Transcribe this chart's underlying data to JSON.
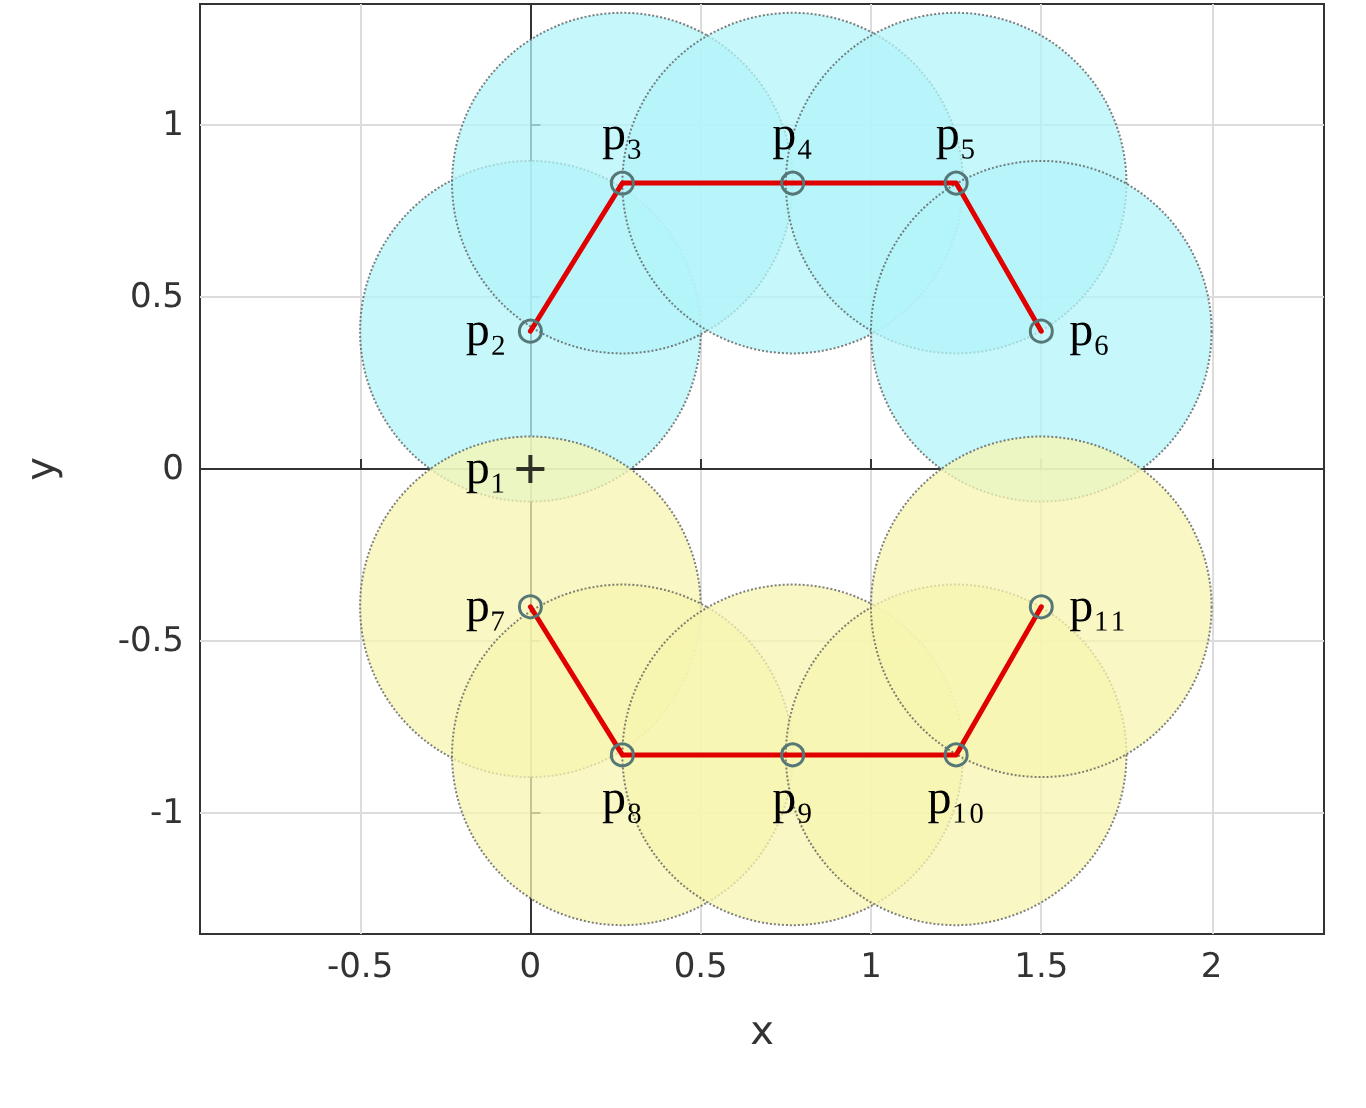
{
  "chart_data": {
    "type": "line",
    "xlabel": "x",
    "ylabel": "y",
    "xlim": [
      -0.97,
      2.33
    ],
    "ylim": [
      -1.35,
      1.35
    ],
    "xticks": [
      -0.5,
      0,
      0.5,
      1,
      1.5,
      2
    ],
    "yticks": [
      -1,
      -0.5,
      0,
      0.5,
      1
    ],
    "grid": true,
    "marker": "circle",
    "line_style": "solid",
    "series": [
      {
        "type": "bubble",
        "color": "#b3f4f9",
        "x": [
          0,
          0.27,
          0.77,
          1.25,
          1.5
        ],
        "values": [
          0.4,
          0.83,
          0.83,
          0.83,
          0.4
        ],
        "sizes": [
          1,
          1,
          1,
          1,
          1
        ]
      },
      {
        "type": "bubble",
        "color": "#f7f5b0",
        "x": [
          0,
          0.27,
          0.77,
          1.25,
          1.5
        ],
        "values": [
          -0.4,
          -0.83,
          -0.83,
          -0.83,
          -0.4
        ],
        "sizes": [
          1,
          1,
          1,
          1,
          1
        ]
      },
      {
        "color": "#e00000",
        "x": [
          0,
          0.27,
          0.77,
          1.25,
          1.5
        ],
        "values": [
          0.4,
          0.83,
          0.83,
          0.83,
          0.4
        ]
      },
      {
        "color": "#e00000",
        "x": [
          0,
          0.27,
          0.77,
          1.25,
          1.5
        ],
        "values": [
          -0.4,
          -0.83,
          -0.83,
          -0.83,
          -0.4
        ]
      },
      {
        "type": "scatter",
        "color": "#000000",
        "marker": "cross",
        "x": [
          0
        ],
        "values": [
          0
        ]
      }
    ],
    "annotations": [
      {
        "text": "p₁",
        "x": 0,
        "y": 0
      },
      {
        "text": "p₂",
        "x": 0,
        "y": 0.4
      },
      {
        "text": "p₃",
        "x": 0.27,
        "y": 0.83
      },
      {
        "text": "p₄",
        "x": 0.77,
        "y": 0.83
      },
      {
        "text": "p₅",
        "x": 1.25,
        "y": 0.83
      },
      {
        "text": "p₆",
        "x": 1.5,
        "y": 0.4
      },
      {
        "text": "p₇",
        "x": 0,
        "y": -0.4
      },
      {
        "text": "p₈",
        "x": 0.27,
        "y": -0.83
      },
      {
        "text": "p₉",
        "x": 0.77,
        "y": -0.83
      },
      {
        "text": "p₁₀",
        "x": 1.25,
        "y": -0.83
      },
      {
        "text": "p₁₁",
        "x": 1.5,
        "y": -0.4
      }
    ]
  }
}
